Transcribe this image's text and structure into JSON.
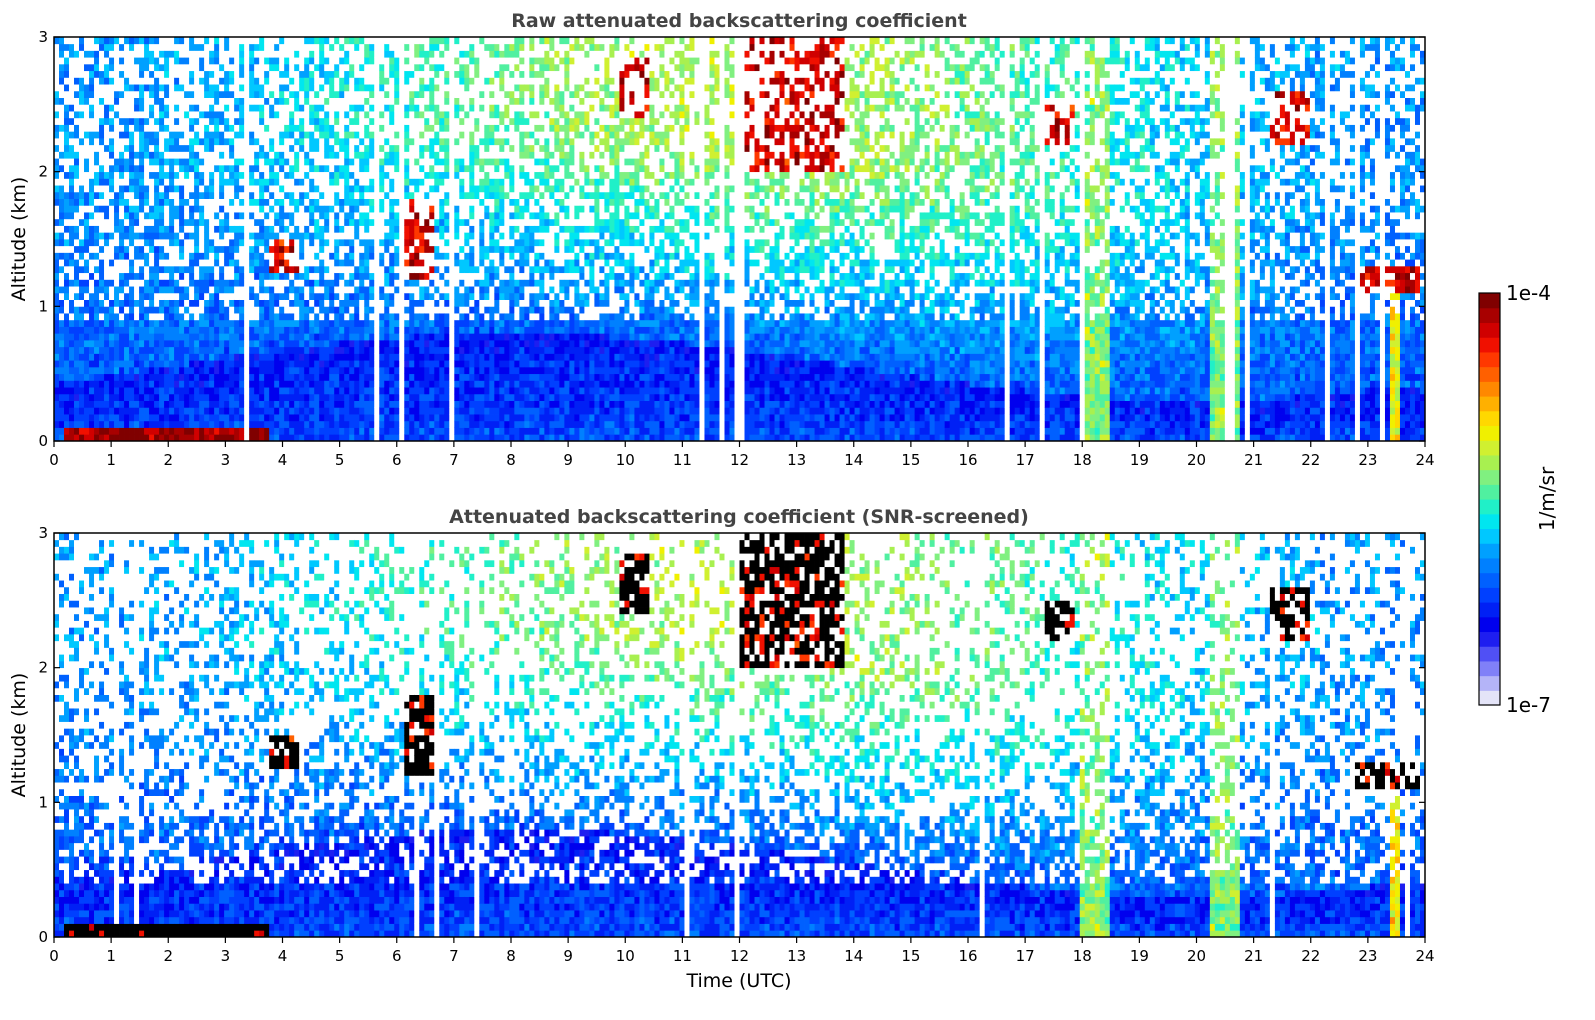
{
  "chart_data": [
    {
      "type": "heatmap",
      "title": "Raw attenuated backscattering coefficient",
      "xlabel": "",
      "ylabel": "Altitude (km)",
      "xlim": [
        0,
        24
      ],
      "ylim": [
        0,
        3
      ],
      "xticks": [
        "0",
        "1",
        "2",
        "3",
        "4",
        "5",
        "6",
        "7",
        "8",
        "9",
        "10",
        "11",
        "12",
        "13",
        "14",
        "15",
        "16",
        "17",
        "18",
        "19",
        "20",
        "21",
        "22",
        "23",
        "24"
      ],
      "yticks": [
        "0",
        "1",
        "2",
        "3"
      ],
      "screened": false,
      "features": [
        {
          "name": "boundary layer",
          "start": 0,
          "end": 24,
          "base": 0,
          "top": 0.7,
          "level": 0.25
        },
        {
          "name": "surface layer aerosol",
          "start": 0.2,
          "end": 3.8,
          "base": 0,
          "top": 0.08,
          "level": 1.0
        },
        {
          "name": "aerosol layer",
          "start": 3.8,
          "end": 4.3,
          "base": 1.25,
          "top": 1.5,
          "level": 0.95
        },
        {
          "name": "cloud",
          "start": 6.1,
          "end": 6.7,
          "base": 1.2,
          "top": 1.8,
          "level": 0.95
        },
        {
          "name": "cloud",
          "start": 9.9,
          "end": 10.4,
          "base": 2.4,
          "top": 2.85,
          "level": 0.95
        },
        {
          "name": "cloud",
          "start": 12.0,
          "end": 13.8,
          "base": 2.0,
          "top": 3.0,
          "level": 0.95
        },
        {
          "name": "cloud",
          "start": 17.3,
          "end": 17.9,
          "base": 2.2,
          "top": 2.5,
          "level": 0.95
        },
        {
          "name": "precipitation",
          "start": 18.0,
          "end": 18.5,
          "base": 0,
          "top": 3.0,
          "level": 0.6
        },
        {
          "name": "precipitation",
          "start": 20.2,
          "end": 20.8,
          "base": 0,
          "top": 3.0,
          "level": 0.6
        },
        {
          "name": "cloud",
          "start": 21.3,
          "end": 22.0,
          "base": 2.2,
          "top": 2.6,
          "level": 0.95
        },
        {
          "name": "cloud",
          "start": 22.8,
          "end": 23.9,
          "base": 1.1,
          "top": 1.3,
          "level": 0.95
        },
        {
          "name": "precipitation",
          "start": 23.4,
          "end": 23.6,
          "base": 0,
          "top": 1.3,
          "level": 0.7
        }
      ]
    },
    {
      "type": "heatmap",
      "title": "Attenuated backscattering coefficient (SNR-screened)",
      "xlabel": "Time (UTC)",
      "ylabel": "Altitude (km)",
      "xlim": [
        0,
        24
      ],
      "ylim": [
        0,
        3
      ],
      "xticks": [
        "0",
        "1",
        "2",
        "3",
        "4",
        "5",
        "6",
        "7",
        "8",
        "9",
        "10",
        "11",
        "12",
        "13",
        "14",
        "15",
        "16",
        "17",
        "18",
        "19",
        "20",
        "21",
        "22",
        "23",
        "24"
      ],
      "yticks": [
        "0",
        "1",
        "2",
        "3"
      ],
      "screened": true
    }
  ],
  "colorbar": {
    "label": "1/m/sr",
    "max_label": "1e-4",
    "min_label": "1e-7",
    "scale": "log",
    "range": [
      1e-07,
      0.0001
    ],
    "colors": [
      "#e4e4f8",
      "#b4b4f8",
      "#8080f8",
      "#5050f5",
      "#1e1ef0",
      "#0000ee",
      "#0020f5",
      "#0040ff",
      "#0060ff",
      "#0080ff",
      "#00a0ff",
      "#00c8ff",
      "#00e6f0",
      "#20f0c8",
      "#50f0a0",
      "#80f080",
      "#a8f050",
      "#d0f030",
      "#f0f000",
      "#ffd800",
      "#ffb000",
      "#ff8800",
      "#ff6000",
      "#ff3800",
      "#f01000",
      "#d00000",
      "#a80000",
      "#800000"
    ]
  }
}
